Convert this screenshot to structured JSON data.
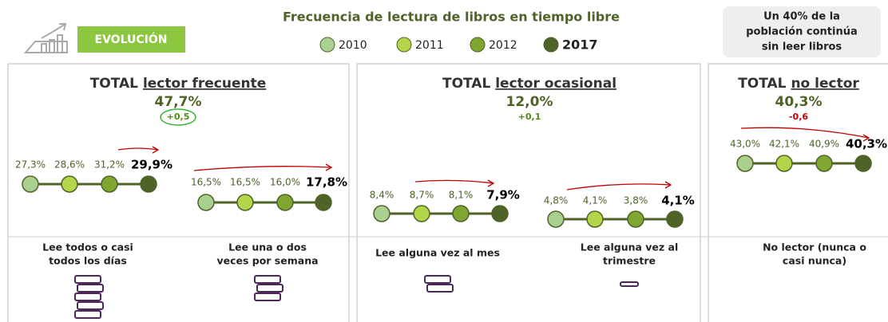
{
  "header": {
    "badge": "EVOLUCIÓN",
    "title": "Frecuencia de lectura de libros en tiempo libre",
    "legend": [
      "2010",
      "2011",
      "2012",
      "2017"
    ],
    "note": [
      "Un 40% de la",
      "población continúa",
      "sin leer libros"
    ]
  },
  "panels": [
    {
      "title_prefix": "TOTAL",
      "title_link": "lector frecuente",
      "total": "47,7%",
      "change": "+0,5",
      "groups": [
        {
          "labels": [
            "27,3%",
            "28,6%",
            "31,2%",
            "29,9%"
          ],
          "caption": [
            "Lee todos o casi",
            "todos los días"
          ]
        },
        {
          "labels": [
            "16,5%",
            "16,5%",
            "16,0%",
            "17,8%"
          ],
          "caption": [
            "Lee una o dos",
            "veces por semana"
          ]
        }
      ]
    },
    {
      "title_prefix": "TOTAL",
      "title_link": "lector ocasional",
      "total": "12,0%",
      "change": "+0,1",
      "groups": [
        {
          "labels": [
            "8,4%",
            "8,7%",
            "8,1%",
            "7,9%"
          ],
          "caption": [
            "Lee alguna vez al mes"
          ]
        },
        {
          "labels": [
            "4,8%",
            "4,1%",
            "3,8%",
            "4,1%"
          ],
          "caption": [
            "Lee alguna vez al",
            "trimestre"
          ]
        }
      ]
    },
    {
      "title_prefix": "TOTAL",
      "title_link": "no lector",
      "total": "40,3%",
      "change": "-0,6",
      "groups": [
        {
          "labels": [
            "43,0%",
            "42,1%",
            "40,9%",
            "40,3%"
          ],
          "caption": [
            "No lector (nunca o",
            "casi nunca)"
          ]
        }
      ]
    }
  ]
}
